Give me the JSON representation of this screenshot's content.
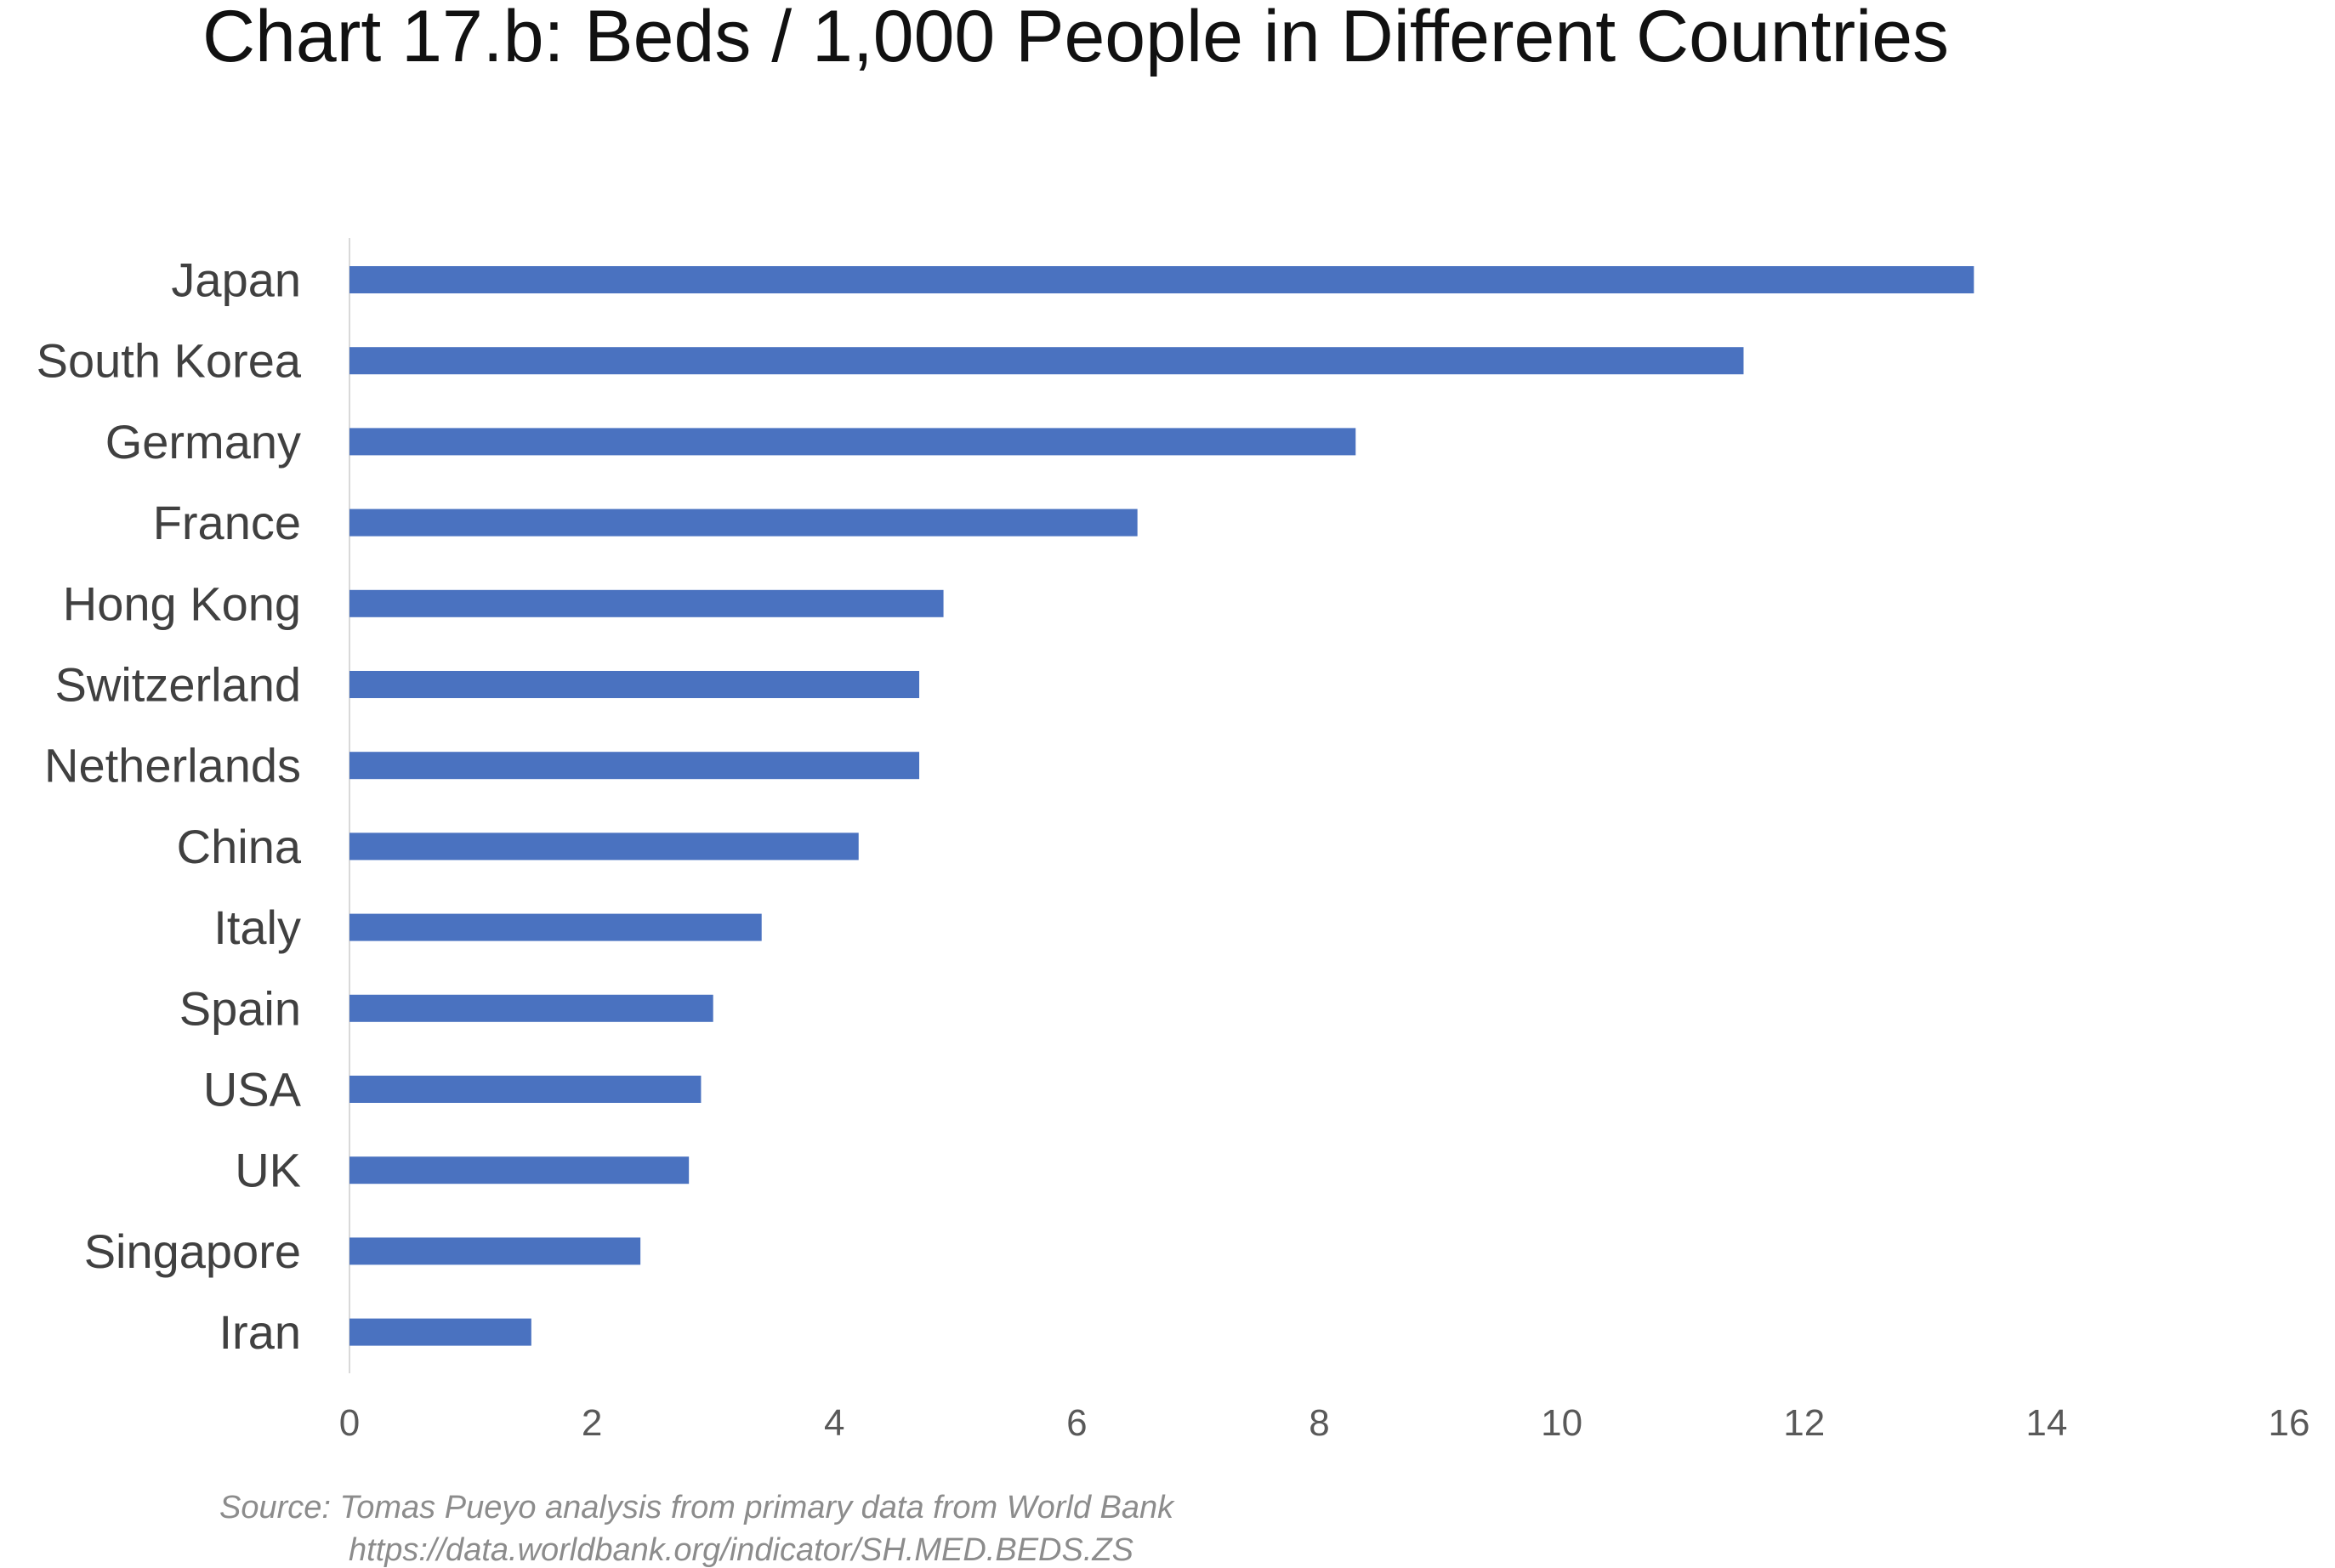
{
  "chart_data": {
    "type": "bar",
    "orientation": "horizontal",
    "title": "Chart 17.b: Beds / 1,000 People in Different Countries",
    "xlabel": "",
    "ylabel": "",
    "xlim": [
      0,
      16
    ],
    "x_ticks": [
      0,
      2,
      4,
      6,
      8,
      10,
      12,
      14,
      16
    ],
    "grid": false,
    "legend": "none",
    "bar_color": "#4a72c0",
    "categories": [
      "Japan",
      "South Korea",
      "Germany",
      "France",
      "Hong Kong",
      "Switzerland",
      "Netherlands",
      "China",
      "Italy",
      "Spain",
      "USA",
      "UK",
      "Singapore",
      "Iran"
    ],
    "values": [
      13.4,
      11.5,
      8.3,
      6.5,
      4.9,
      4.7,
      4.7,
      4.2,
      3.4,
      3.0,
      2.9,
      2.8,
      2.4,
      1.5
    ],
    "source_line1": "Source: Tomas Pueyo analysis from primary data from World Bank",
    "source_line2": "https://data.worldbank.org/indicator/SH.MED.BEDS.ZS"
  }
}
